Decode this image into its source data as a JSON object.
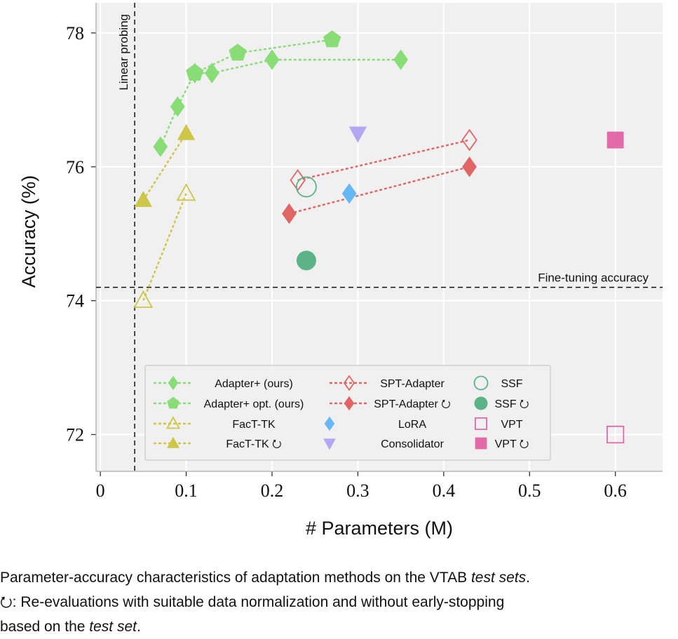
{
  "chart_data": {
    "type": "scatter",
    "xlabel": "# Parameters (M)",
    "ylabel": "Accuracy (%)",
    "xlim": [
      -0.005,
      0.655
    ],
    "ylim": [
      71.45,
      78.45
    ],
    "xticks": [
      0,
      0.1,
      0.2,
      0.3,
      0.4,
      0.5,
      0.6
    ],
    "xtick_labels": [
      "0",
      "0.1",
      "0.2",
      "0.3",
      "0.4",
      "0.5",
      "0.6"
    ],
    "yticks": [
      72,
      74,
      76,
      78
    ],
    "ytick_labels": [
      "72",
      "74",
      "76",
      "78"
    ],
    "grid": true,
    "legend_position": "bottom-center",
    "reference_lines": [
      {
        "orientation": "vertical",
        "value": 0.04,
        "label": "Linear probing"
      },
      {
        "orientation": "horizontal",
        "value": 74.2,
        "label": "Fine-tuning accuracy"
      }
    ],
    "series": [
      {
        "name": "Adapter+ (ours)",
        "marker": "diamond",
        "filled": true,
        "line": true,
        "color": "#88dd77",
        "x": [
          0.07,
          0.09,
          0.11,
          0.13,
          0.2,
          0.35
        ],
        "y": [
          76.3,
          76.9,
          77.4,
          77.4,
          77.6,
          77.6
        ]
      },
      {
        "name": "Adapter+ opt. (ours)",
        "marker": "pentagon",
        "filled": true,
        "line": true,
        "color": "#88dd77",
        "x": [
          0.11,
          0.16,
          0.27
        ],
        "y": [
          77.4,
          77.7,
          77.9
        ]
      },
      {
        "name": "FacT-TK",
        "marker": "triangle",
        "filled": false,
        "line": true,
        "color": "#cdc646",
        "x": [
          0.05,
          0.1
        ],
        "y": [
          74.0,
          75.6
        ]
      },
      {
        "name": "FacT-TK ⭮",
        "marker": "triangle",
        "filled": true,
        "line": true,
        "color": "#cdc646",
        "x": [
          0.05,
          0.1
        ],
        "y": [
          75.5,
          76.5
        ]
      },
      {
        "name": "SPT-Adapter",
        "marker": "diamond",
        "filled": false,
        "line": true,
        "color": "#e06666",
        "x": [
          0.23,
          0.43
        ],
        "y": [
          75.8,
          76.4
        ]
      },
      {
        "name": "SPT-Adapter ⭮",
        "marker": "diamond",
        "filled": true,
        "line": true,
        "color": "#e06666",
        "x": [
          0.22,
          0.43
        ],
        "y": [
          75.3,
          76.0
        ]
      },
      {
        "name": "Consolidator",
        "marker": "triangle-down",
        "filled": true,
        "line": false,
        "color": "#b3a6f2",
        "x": [
          0.3
        ],
        "y": [
          76.5
        ]
      },
      {
        "name": "LoRA",
        "marker": "diamond",
        "filled": true,
        "line": false,
        "color": "#66b8f5",
        "x": [
          0.29
        ],
        "y": [
          75.6
        ]
      },
      {
        "name": "SSF",
        "marker": "circle",
        "filled": false,
        "line": false,
        "color": "#5cb386",
        "x": [
          0.24
        ],
        "y": [
          75.7
        ]
      },
      {
        "name": "SSF ⭮",
        "marker": "circle",
        "filled": true,
        "line": false,
        "color": "#5cb386",
        "x": [
          0.24
        ],
        "y": [
          74.6
        ]
      },
      {
        "name": "VPT",
        "marker": "square",
        "filled": false,
        "line": false,
        "color": "#e36aa8",
        "x": [
          0.6
        ],
        "y": [
          72.0
        ]
      },
      {
        "name": "VPT ⭮",
        "marker": "square",
        "filled": true,
        "line": false,
        "color": "#e36aa8",
        "x": [
          0.6
        ],
        "y": [
          76.4
        ]
      }
    ],
    "legend_order": [
      0,
      1,
      2,
      3,
      4,
      5,
      7,
      6,
      8,
      9,
      10,
      11
    ]
  },
  "caption": {
    "line1_prefix": "Parameter-accuracy characteristics of adaptation methods on the VTAB ",
    "line1_em": "test sets",
    "line1_suffix": ".",
    "line2": "⭮: Re-evaluations with suitable data normalization and without early-stopping",
    "line3_prefix": "based on the ",
    "line3_em": "test set",
    "line3_suffix": "."
  }
}
